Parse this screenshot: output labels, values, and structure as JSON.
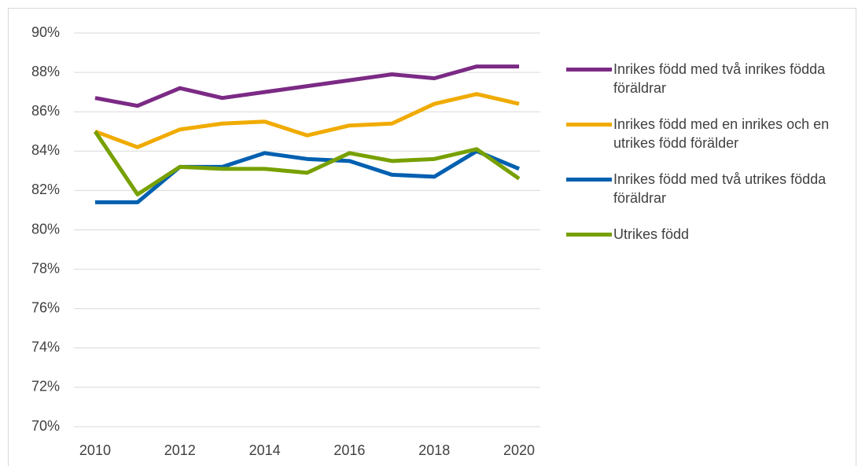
{
  "chart_data": {
    "type": "line",
    "x": [
      2010,
      2011,
      2012,
      2013,
      2014,
      2015,
      2016,
      2017,
      2018,
      2019,
      2020
    ],
    "series": [
      {
        "name": "Inrikes född med två inrikes födda föräldrar",
        "color": "#7b2a85",
        "values": [
          86.7,
          86.3,
          87.2,
          86.7,
          87.0,
          87.3,
          87.6,
          87.9,
          87.7,
          88.3,
          88.3
        ]
      },
      {
        "name": "Inrikes född med en inrikes och en utrikes född förälder",
        "color": "#f0ab00",
        "values": [
          85.0,
          84.2,
          85.1,
          85.4,
          85.5,
          84.8,
          85.3,
          85.4,
          86.4,
          86.9,
          86.4
        ]
      },
      {
        "name": "Inrikes född med två utrikes födda föräldrar",
        "color": "#0060b0",
        "values": [
          81.4,
          81.4,
          83.2,
          83.2,
          83.9,
          83.6,
          83.5,
          82.8,
          82.7,
          84.0,
          83.1
        ]
      },
      {
        "name": "Utrikes född",
        "color": "#77a000",
        "values": [
          85.0,
          81.8,
          83.2,
          83.1,
          83.1,
          82.9,
          83.9,
          83.5,
          83.6,
          84.1,
          82.6
        ]
      }
    ],
    "xlim": [
      2009.5,
      2020.5
    ],
    "xticks": [
      2010,
      2012,
      2014,
      2016,
      2018,
      2020
    ],
    "ylim": [
      70,
      90
    ],
    "yticks": [
      {
        "value": 70,
        "label": "70%"
      },
      {
        "value": 72,
        "label": "72%"
      },
      {
        "value": 74,
        "label": "74%"
      },
      {
        "value": 76,
        "label": "76%"
      },
      {
        "value": 78,
        "label": "78%"
      },
      {
        "value": 80,
        "label": "80%"
      },
      {
        "value": 82,
        "label": "82%"
      },
      {
        "value": 84,
        "label": "84%"
      },
      {
        "value": 86,
        "label": "86%"
      },
      {
        "value": 88,
        "label": "88%"
      },
      {
        "value": 90,
        "label": "90%"
      }
    ],
    "grid": true
  }
}
